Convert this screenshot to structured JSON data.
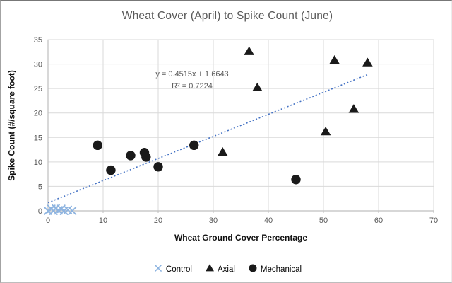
{
  "chart_data": {
    "type": "scatter",
    "title": "Wheat Cover (April) to Spike Count (June)",
    "xlabel": "Wheat Ground Cover Percentage",
    "ylabel": "Spike Count (#/square foot)",
    "xlim": [
      0,
      70
    ],
    "ylim": [
      0,
      35
    ],
    "xticks": [
      0,
      10,
      20,
      30,
      40,
      50,
      60,
      70
    ],
    "yticks": [
      0,
      5,
      10,
      15,
      20,
      25,
      30,
      35
    ],
    "grid": true,
    "legend_position": "bottom",
    "colors": {
      "gridline": "#d9d9d9",
      "axis": "#bfbfbf",
      "trendline": "#4472c4",
      "tick_text": "#595959",
      "control_marker": "#8eb4e0",
      "data_marker": "#1a1a1a"
    },
    "trendline": {
      "equation": "y = 0.4515x + 1.6643",
      "r2": "R² = 0.7224",
      "slope": 0.4515,
      "intercept": 1.6643,
      "x_start": 0,
      "x_end": 58,
      "style": "dotted"
    },
    "series": [
      {
        "name": "Control",
        "marker": "x",
        "color": "#8eb4e0",
        "points": [
          [
            0,
            0
          ],
          [
            0.6,
            0.4
          ],
          [
            1,
            0
          ],
          [
            1.4,
            0.5
          ],
          [
            1.9,
            0.1
          ],
          [
            2.4,
            0.4
          ],
          [
            2.9,
            0
          ],
          [
            3.6,
            0.2
          ],
          [
            4.4,
            0
          ]
        ]
      },
      {
        "name": "Axial",
        "marker": "triangle",
        "color": "#1a1a1a",
        "points": [
          [
            31.7,
            12.0
          ],
          [
            36.5,
            32.6
          ],
          [
            38,
            25.2
          ],
          [
            50.4,
            16.2
          ],
          [
            52,
            30.8
          ],
          [
            55.5,
            20.8
          ],
          [
            58,
            30.3
          ]
        ]
      },
      {
        "name": "Mechanical",
        "marker": "circle",
        "color": "#1a1a1a",
        "points": [
          [
            9,
            13.4
          ],
          [
            11.4,
            8.3
          ],
          [
            15,
            11.3
          ],
          [
            17.5,
            11.9
          ],
          [
            17.8,
            11.0
          ],
          [
            20,
            9.0
          ],
          [
            26.5,
            13.4
          ],
          [
            45,
            6.4
          ]
        ]
      }
    ]
  }
}
